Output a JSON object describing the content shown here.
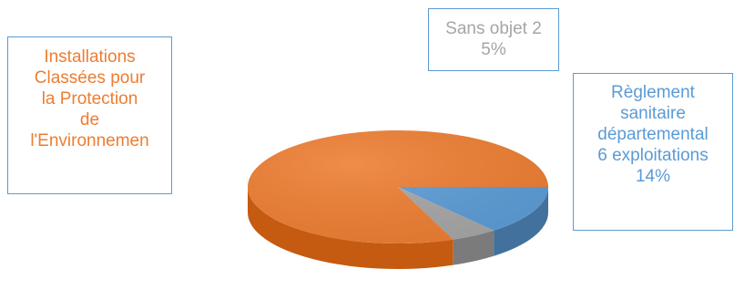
{
  "chart_data": {
    "type": "pie",
    "style": "3d",
    "slices": [
      {
        "lines": [
          "Règlement",
          "sanitaire",
          "départemental",
          "6 exploitations",
          "14%"
        ],
        "value": 14,
        "color": "#5b9bd5",
        "side_color": "#41719c",
        "border_color": "#5b9bd5"
      },
      {
        "lines": [
          "Installations",
          "Classées pour",
          "la Protection",
          "de",
          "l'Environnemen"
        ],
        "value": 81,
        "color": "#ed7d31",
        "side_color": "#c55a11",
        "border_color": "#5b9bd5"
      },
      {
        "lines": [
          "Sans objet 2",
          "5%"
        ],
        "value": 5,
        "color": "#a5a5a5",
        "side_color": "#7b7b7b",
        "border_color": "#5b9bd5"
      }
    ]
  }
}
